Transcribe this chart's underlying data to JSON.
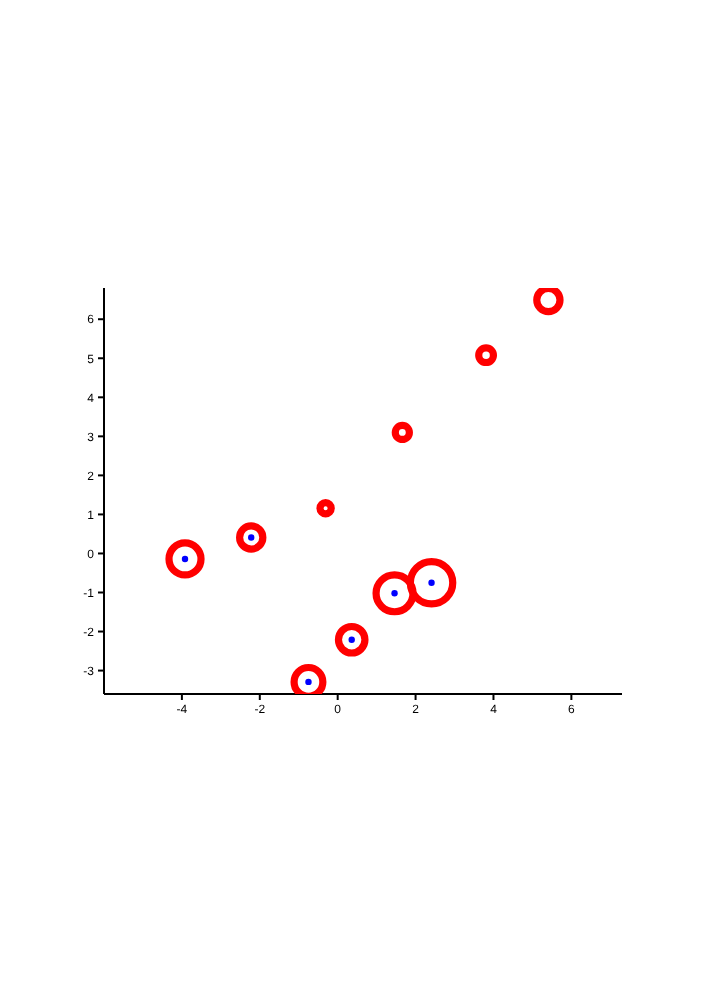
{
  "chart_data": {
    "type": "scatter",
    "xlim": [
      -6,
      7.3
    ],
    "ylim": [
      -3.6,
      6.8
    ],
    "xticks": [
      -4,
      -2,
      0,
      2,
      4,
      6
    ],
    "yticks": [
      -3,
      -2,
      -1,
      0,
      1,
      2,
      3,
      4,
      5,
      6
    ],
    "series": [
      {
        "type": "bubble",
        "color": "#ff0000",
        "x": [
          5.41,
          3.81,
          1.66,
          -0.31,
          -3.92,
          -2.22,
          2.41,
          1.46,
          0.36,
          -0.75
        ],
        "values": [
          6.49,
          5.08,
          3.1,
          1.16,
          -0.14,
          0.41,
          -0.75,
          -1.02,
          -2.21,
          -3.29
        ],
        "sizes": [
          0.3,
          0.12,
          0.11,
          0.07,
          0.57,
          0.3,
          1,
          0.76,
          0.39,
          0.46
        ]
      },
      {
        "color": "#0000ff",
        "marker": "circle",
        "x": [
          -3.92,
          -2.22,
          2.41,
          1.46,
          0.36,
          -0.75
        ],
        "values": [
          -0.14,
          0.41,
          -0.75,
          -1.02,
          -2.21,
          -3.29
        ]
      }
    ]
  }
}
